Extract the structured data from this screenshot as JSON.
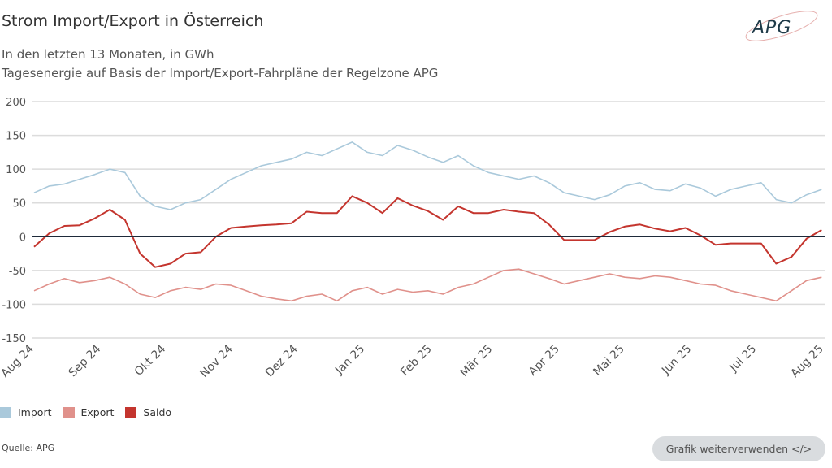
{
  "header": {
    "title": "Strom Import/Export in Österreich",
    "subtitle1": "In den letzten 13 Monaten, in GWh",
    "subtitle2": "Tagesenergie auf Basis der Import/Export-Fahrpläne der Regelzone APG",
    "logo_text": "APG"
  },
  "chart_data": {
    "type": "line",
    "ylim": [
      -150,
      200
    ],
    "yticks": [
      -150,
      -100,
      -50,
      0,
      50,
      100,
      150,
      200
    ],
    "grid": true,
    "legend_position": "bottom-left",
    "x_ticks": [
      {
        "date": "2024-08-01",
        "label": "Aug 24"
      },
      {
        "date": "2024-09-01",
        "label": "Sep 24"
      },
      {
        "date": "2024-10-01",
        "label": "Okt 24"
      },
      {
        "date": "2024-11-01",
        "label": "Nov 24"
      },
      {
        "date": "2024-12-01",
        "label": "Dez 24"
      },
      {
        "date": "2025-01-01",
        "label": "Jan 25"
      },
      {
        "date": "2025-02-01",
        "label": "Feb 25"
      },
      {
        "date": "2025-03-01",
        "label": "Mär 25"
      },
      {
        "date": "2025-04-01",
        "label": "Apr 25"
      },
      {
        "date": "2025-05-01",
        "label": "Mai 25"
      },
      {
        "date": "2025-06-01",
        "label": "Jun 25"
      },
      {
        "date": "2025-07-01",
        "label": "Jul 25"
      },
      {
        "date": "2025-08-01",
        "label": "Aug 25"
      }
    ],
    "x_start": "2024-08-01",
    "x_step_days": 7,
    "series": [
      {
        "name": "Import",
        "color": "#aac9db",
        "values": [
          65,
          75,
          78,
          85,
          92,
          100,
          95,
          60,
          45,
          40,
          50,
          55,
          70,
          85,
          95,
          105,
          110,
          115,
          125,
          120,
          130,
          140,
          125,
          120,
          135,
          128,
          118,
          110,
          120,
          105,
          95,
          90,
          85,
          90,
          80,
          65,
          60,
          55,
          62,
          75,
          80,
          70,
          68,
          78,
          72,
          60,
          70,
          75,
          80,
          55,
          50,
          62,
          70
        ]
      },
      {
        "name": "Export",
        "color": "#e0918b",
        "values": [
          -80,
          -70,
          -62,
          -68,
          -65,
          -60,
          -70,
          -85,
          -90,
          -80,
          -75,
          -78,
          -70,
          -72,
          -80,
          -88,
          -92,
          -95,
          -88,
          -85,
          -95,
          -80,
          -75,
          -85,
          -78,
          -82,
          -80,
          -85,
          -75,
          -70,
          -60,
          -50,
          -48,
          -55,
          -62,
          -70,
          -65,
          -60,
          -55,
          -60,
          -62,
          -58,
          -60,
          -65,
          -70,
          -72,
          -80,
          -85,
          -90,
          -95,
          -80,
          -65,
          -60
        ]
      },
      {
        "name": "Saldo",
        "color": "#c4352e",
        "values": [
          -15,
          5,
          16,
          17,
          27,
          40,
          25,
          -25,
          -45,
          -40,
          -25,
          -23,
          0,
          13,
          15,
          17,
          18,
          20,
          37,
          35,
          35,
          60,
          50,
          35,
          57,
          46,
          38,
          25,
          45,
          35,
          35,
          40,
          37,
          35,
          18,
          -5,
          -5,
          -5,
          7,
          15,
          18,
          12,
          8,
          13,
          2,
          -12,
          -10,
          -10,
          -10,
          -40,
          -30,
          -3,
          10
        ]
      }
    ]
  },
  "footer": {
    "source": "Quelle: APG",
    "reuse_button": "Grafik weiterverwenden </>"
  }
}
